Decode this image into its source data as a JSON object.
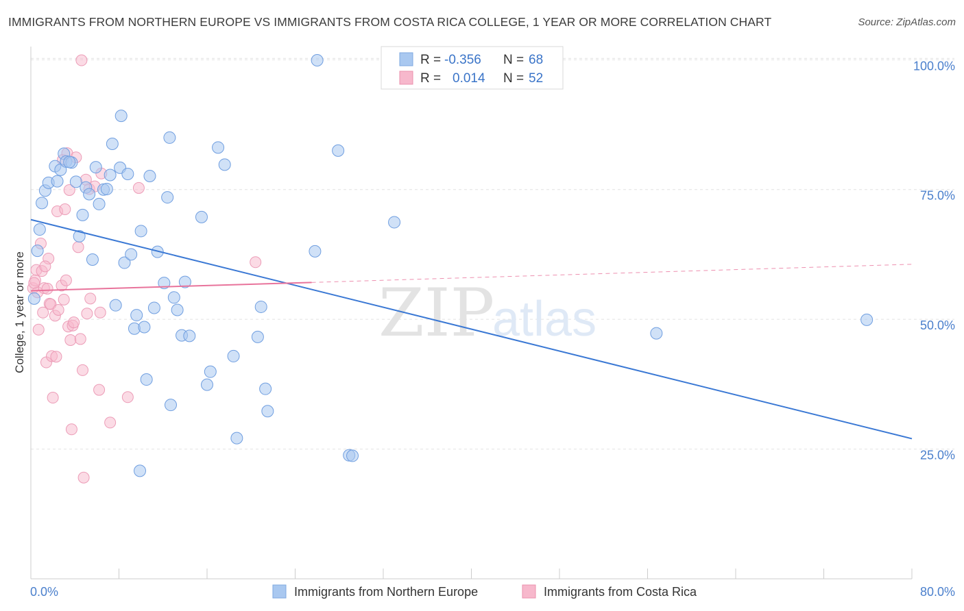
{
  "title": "IMMIGRANTS FROM NORTHERN EUROPE VS IMMIGRANTS FROM COSTA RICA COLLEGE, 1 YEAR OR MORE CORRELATION CHART",
  "source": "Source: ZipAtlas.com",
  "watermark": {
    "zip": "ZIP",
    "atlas": "atlas"
  },
  "legend": {
    "r_label": "R =",
    "n_label": "N =",
    "rows": [
      {
        "r": "-0.356",
        "n": "68",
        "color": "#a9c8f0"
      },
      {
        "r": "0.014",
        "n": "52",
        "color": "#f7b8cc"
      }
    ]
  },
  "colors": {
    "blue_point": "#a9c8f0",
    "blue_line": "#3a78d4",
    "pink_point": "#f7b8cc",
    "pink_line": "#e8739b",
    "tick": "#4a7fcc"
  },
  "chart_data": {
    "type": "scatter",
    "title": "IMMIGRANTS FROM NORTHERN EUROPE VS IMMIGRANTS FROM COSTA RICA COLLEGE, 1 YEAR OR MORE CORRELATION CHART",
    "xlabel": "",
    "ylabel": "College, 1 year or more",
    "xlim": [
      0,
      80
    ],
    "ylim": [
      0,
      101
    ],
    "x_tick_labels": [
      "0.0%",
      "80.0%"
    ],
    "y_ticks": [
      25,
      50,
      75,
      100
    ],
    "y_tick_labels": [
      "25.0%",
      "50.0%",
      "75.0%",
      "100.0%"
    ],
    "grid": true,
    "legend_position": "top-center",
    "series": [
      {
        "name": "Immigrants from Northern Europe",
        "r": -0.356,
        "n": 68,
        "trend": {
          "x": [
            0,
            80
          ],
          "y": [
            69.2,
            27.0
          ]
        },
        "points": [
          [
            0.3,
            54.0
          ],
          [
            0.8,
            67.3
          ],
          [
            0.6,
            63.2
          ],
          [
            1.0,
            72.4
          ],
          [
            1.3,
            74.8
          ],
          [
            1.6,
            76.3
          ],
          [
            2.2,
            79.5
          ],
          [
            2.7,
            78.8
          ],
          [
            3.0,
            81.9
          ],
          [
            3.2,
            80.4
          ],
          [
            3.7,
            80.2
          ],
          [
            4.1,
            76.5
          ],
          [
            4.4,
            66.0
          ],
          [
            4.7,
            70.1
          ],
          [
            5.0,
            75.4
          ],
          [
            5.3,
            74.1
          ],
          [
            5.6,
            61.5
          ],
          [
            5.9,
            79.3
          ],
          [
            6.2,
            72.2
          ],
          [
            6.6,
            75.0
          ],
          [
            6.9,
            75.1
          ],
          [
            7.2,
            77.8
          ],
          [
            7.4,
            83.8
          ],
          [
            7.7,
            52.7
          ],
          [
            8.1,
            79.2
          ],
          [
            8.2,
            89.2
          ],
          [
            8.5,
            60.9
          ],
          [
            8.8,
            78.0
          ],
          [
            9.1,
            62.5
          ],
          [
            9.4,
            48.2
          ],
          [
            9.6,
            50.8
          ],
          [
            9.9,
            20.8
          ],
          [
            10.0,
            67.0
          ],
          [
            10.3,
            48.5
          ],
          [
            10.5,
            38.4
          ],
          [
            10.8,
            77.6
          ],
          [
            11.2,
            52.2
          ],
          [
            11.5,
            63.0
          ],
          [
            12.1,
            57.0
          ],
          [
            12.7,
            33.5
          ],
          [
            12.6,
            85.0
          ],
          [
            13.0,
            54.2
          ],
          [
            13.3,
            51.8
          ],
          [
            13.7,
            46.9
          ],
          [
            14.0,
            57.2
          ],
          [
            14.4,
            46.8
          ],
          [
            15.5,
            69.7
          ],
          [
            16.0,
            37.4
          ],
          [
            16.3,
            39.9
          ],
          [
            17.0,
            83.1
          ],
          [
            17.6,
            79.8
          ],
          [
            18.4,
            42.9
          ],
          [
            18.7,
            27.1
          ],
          [
            20.6,
            46.6
          ],
          [
            20.9,
            52.4
          ],
          [
            21.3,
            36.6
          ],
          [
            21.5,
            32.3
          ],
          [
            25.8,
            63.1
          ],
          [
            26.0,
            99.9
          ],
          [
            27.9,
            82.5
          ],
          [
            28.9,
            23.8
          ],
          [
            29.2,
            23.7
          ],
          [
            33.0,
            68.7
          ],
          [
            56.8,
            47.3
          ],
          [
            75.9,
            49.9
          ],
          [
            3.5,
            80.3
          ],
          [
            2.4,
            76.6
          ],
          [
            12.4,
            73.5
          ]
        ]
      },
      {
        "name": "Immigrants from Costa Rica",
        "r": 0.014,
        "n": 52,
        "trend": {
          "x": [
            0,
            25.5
          ],
          "y": [
            55.5,
            57.1
          ]
        },
        "trend_extension": {
          "x": [
            25.5,
            80
          ],
          "y": [
            57.1,
            60.6
          ]
        },
        "points": [
          [
            0.2,
            56.0
          ],
          [
            0.4,
            57.5
          ],
          [
            0.5,
            59.5
          ],
          [
            0.6,
            55.2
          ],
          [
            0.7,
            48.0
          ],
          [
            0.9,
            64.6
          ],
          [
            1.0,
            59.3
          ],
          [
            1.1,
            51.3
          ],
          [
            1.2,
            56.0
          ],
          [
            1.4,
            41.7
          ],
          [
            1.5,
            55.9
          ],
          [
            1.6,
            61.7
          ],
          [
            1.7,
            53.0
          ],
          [
            1.8,
            52.9
          ],
          [
            1.9,
            42.9
          ],
          [
            2.0,
            34.9
          ],
          [
            2.2,
            50.7
          ],
          [
            2.3,
            42.8
          ],
          [
            2.4,
            70.8
          ],
          [
            2.5,
            51.8
          ],
          [
            2.8,
            56.5
          ],
          [
            2.9,
            80.7
          ],
          [
            3.0,
            53.8
          ],
          [
            3.1,
            71.2
          ],
          [
            3.2,
            57.5
          ],
          [
            3.3,
            82.0
          ],
          [
            3.4,
            48.6
          ],
          [
            3.5,
            74.9
          ],
          [
            3.6,
            46.0
          ],
          [
            3.7,
            28.8
          ],
          [
            3.8,
            48.8
          ],
          [
            3.9,
            49.4
          ],
          [
            4.1,
            81.2
          ],
          [
            4.3,
            63.9
          ],
          [
            4.5,
            46.2
          ],
          [
            4.6,
            99.9
          ],
          [
            4.7,
            40.2
          ],
          [
            4.8,
            19.5
          ],
          [
            5.0,
            76.9
          ],
          [
            5.1,
            51.1
          ],
          [
            5.3,
            75.1
          ],
          [
            5.4,
            54.0
          ],
          [
            5.8,
            75.6
          ],
          [
            6.2,
            36.4
          ],
          [
            6.3,
            51.3
          ],
          [
            6.4,
            78.1
          ],
          [
            7.2,
            30.1
          ],
          [
            8.8,
            35.0
          ],
          [
            9.8,
            75.3
          ],
          [
            20.4,
            61.0
          ],
          [
            0.3,
            57.0
          ],
          [
            1.3,
            60.2
          ]
        ]
      }
    ]
  },
  "bottom_legend": [
    {
      "label": "Immigrants from Northern Europe",
      "color": "#a9c8f0"
    },
    {
      "label": "Immigrants from Costa Rica",
      "color": "#f7b8cc"
    }
  ]
}
